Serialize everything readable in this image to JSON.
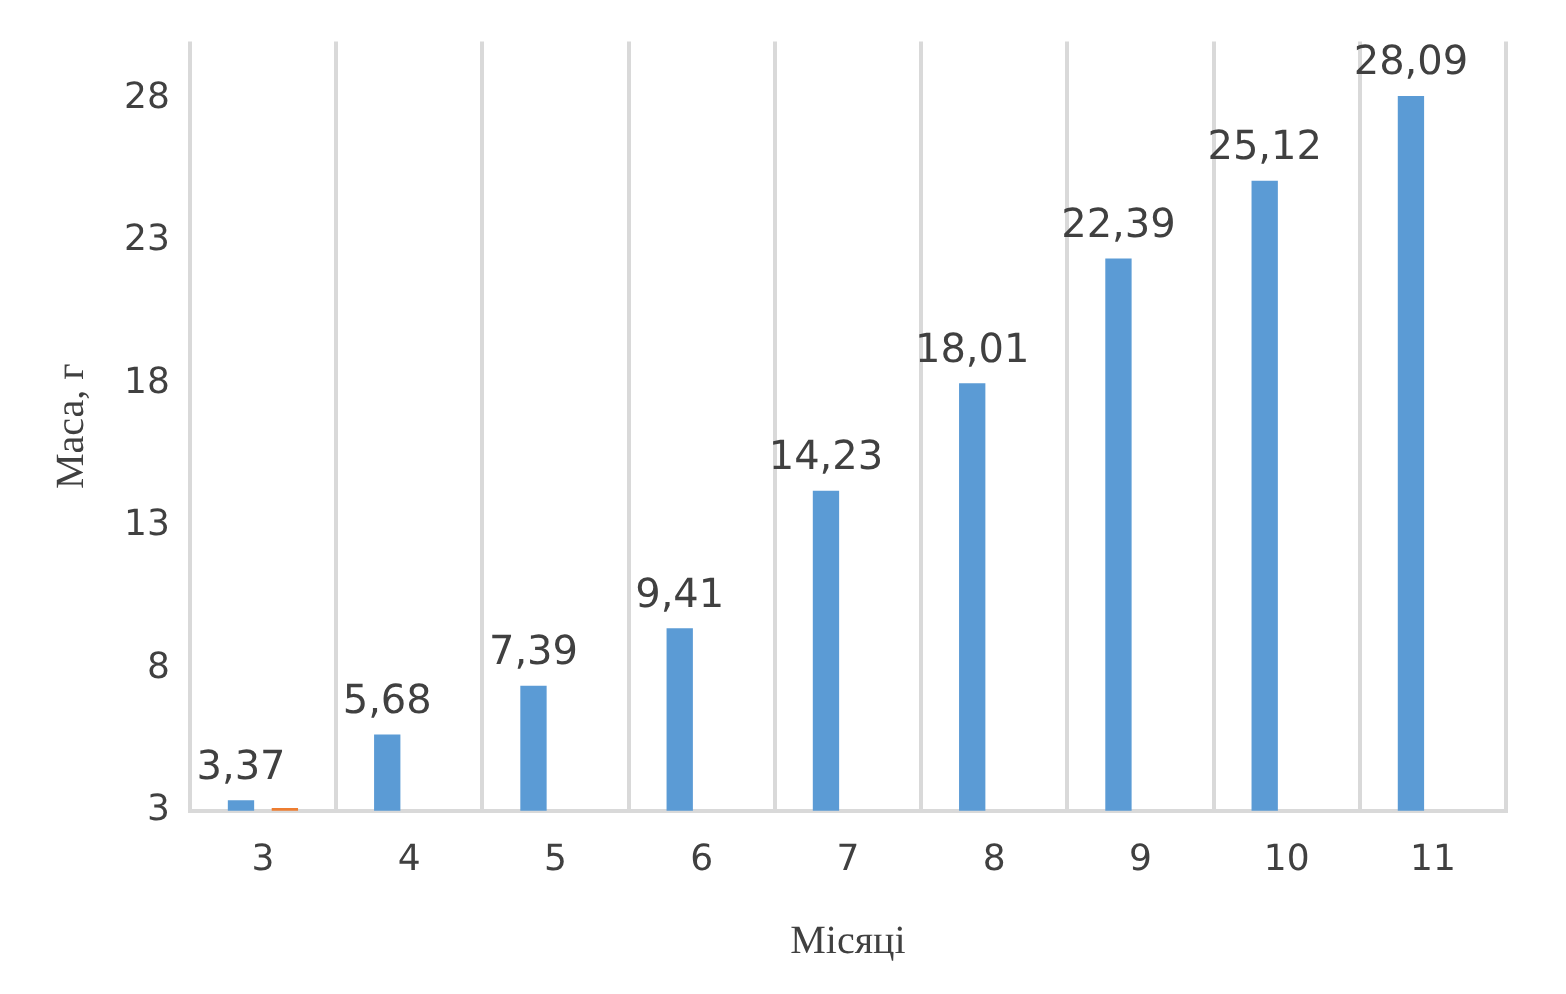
{
  "chart_data": {
    "type": "bar",
    "xlabel": "Місяці",
    "ylabel": "Маса, г",
    "categories": [
      "3",
      "4",
      "5",
      "6",
      "7",
      "8",
      "9",
      "10",
      "11"
    ],
    "series": [
      {
        "color": "#5b9bd5",
        "values": [
          3.37,
          5.68,
          7.39,
          9.41,
          14.23,
          18.01,
          22.39,
          25.12,
          28.09
        ],
        "value_labels": [
          "3,37",
          "5,68",
          "7,39",
          "9,41",
          "14,23",
          "18,01",
          "22,39",
          "25,12",
          "28,09"
        ]
      },
      {
        "color": "#ed7d31",
        "values": [
          3.1,
          null,
          null,
          null,
          null,
          null,
          null,
          null,
          null
        ]
      }
    ],
    "ylim": [
      3,
      30
    ],
    "yticks": [
      3,
      8,
      13,
      18,
      23,
      28
    ],
    "grid": "x",
    "legend": false
  }
}
